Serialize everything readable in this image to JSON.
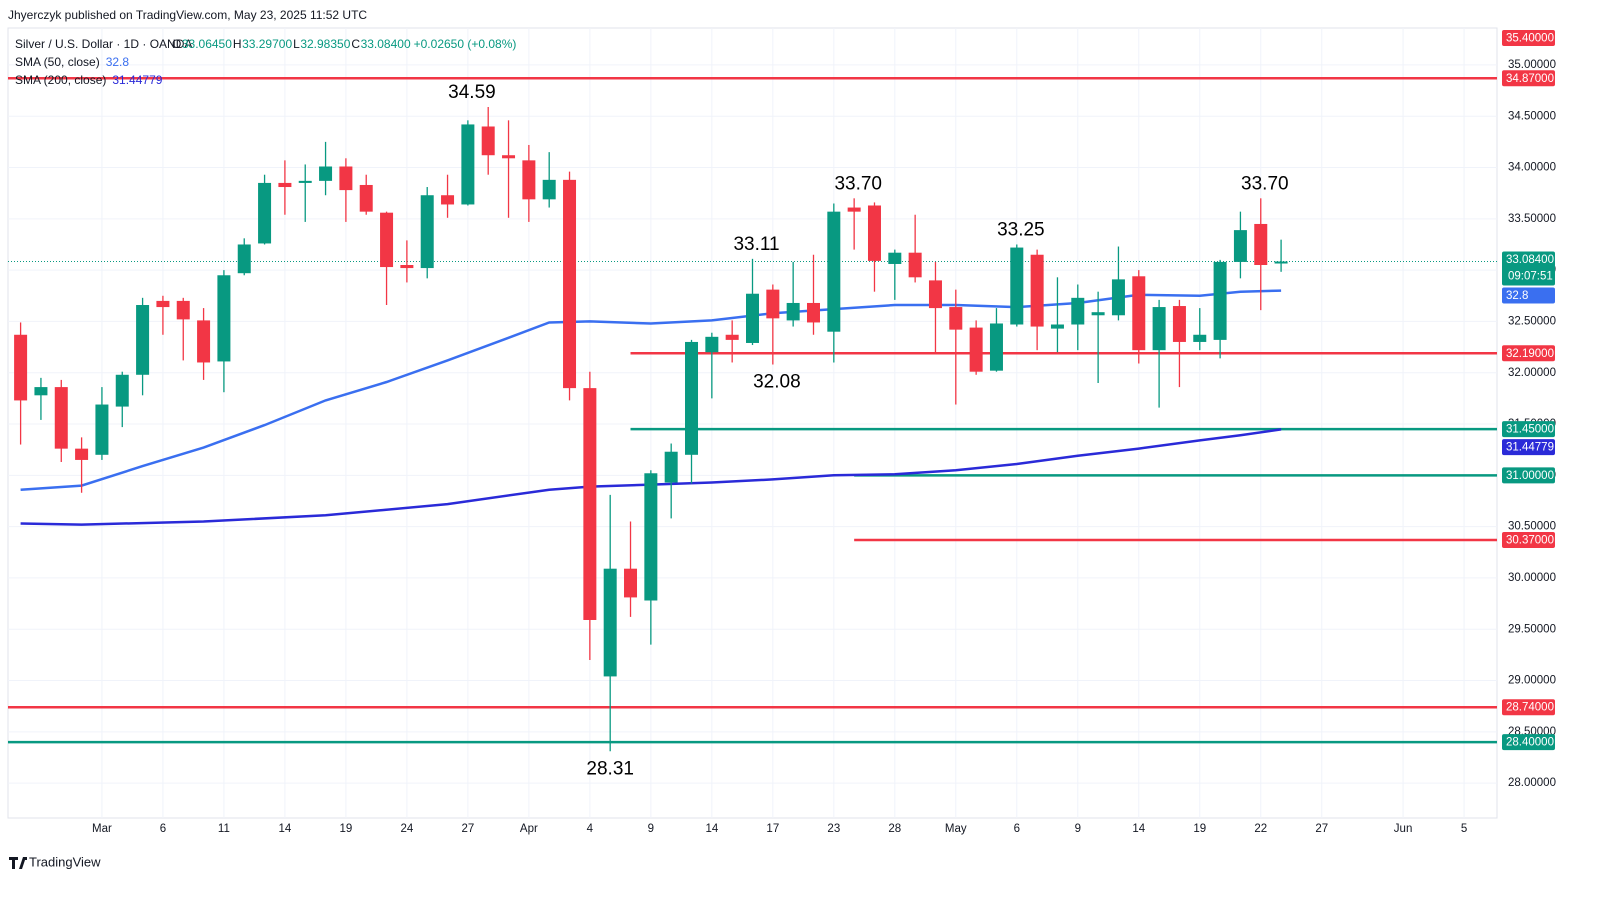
{
  "header": {
    "published": "Jhyerczyk published on TradingView.com, May 23, 2025 11:52 UTC"
  },
  "footer": {
    "brand": "TradingView"
  },
  "chart_data": {
    "type": "candlestick",
    "symbol": "Silver / U.S. Dollar · 1D · OANDA",
    "ohlc": [
      {
        "k": "O",
        "v": "33.06450"
      },
      {
        "k": "H",
        "v": "33.29700"
      },
      {
        "k": "L",
        "v": "32.98350"
      },
      {
        "k": "C",
        "v": "33.08400"
      }
    ],
    "change": "+0.02650 (+0.08%)",
    "up_color": "#089981",
    "down_color": "#f23645",
    "grid": true,
    "xlim": [
      -0.62,
      72.62
    ],
    "ylim": [
      27.66,
      35.36
    ],
    "xticks": [
      {
        "value": 4,
        "label": "Mar"
      },
      {
        "value": 7,
        "label": "6"
      },
      {
        "value": 10,
        "label": "11"
      },
      {
        "value": 13,
        "label": "14"
      },
      {
        "value": 16,
        "label": "19"
      },
      {
        "value": 19,
        "label": "24"
      },
      {
        "value": 22,
        "label": "27"
      },
      {
        "value": 25,
        "label": "Apr"
      },
      {
        "value": 28,
        "label": "4"
      },
      {
        "value": 31,
        "label": "9"
      },
      {
        "value": 34,
        "label": "14"
      },
      {
        "value": 37,
        "label": "17"
      },
      {
        "value": 40,
        "label": "23"
      },
      {
        "value": 43,
        "label": "28"
      },
      {
        "value": 46,
        "label": "May"
      },
      {
        "value": 49,
        "label": "6"
      },
      {
        "value": 52,
        "label": "9"
      },
      {
        "value": 55,
        "label": "14"
      },
      {
        "value": 58,
        "label": "19"
      },
      {
        "value": 61,
        "label": "22"
      },
      {
        "value": 64,
        "label": "27"
      },
      {
        "value": 68,
        "label": "Jun"
      },
      {
        "value": 71,
        "label": "5"
      }
    ],
    "yticks": [
      {
        "value": 28,
        "label": "28.00000"
      },
      {
        "value": 28.5,
        "label": "28.50000"
      },
      {
        "value": 29,
        "label": "29.00000"
      },
      {
        "value": 29.5,
        "label": "29.50000"
      },
      {
        "value": 30,
        "label": "30.00000"
      },
      {
        "value": 30.5,
        "label": "30.50000"
      },
      {
        "value": 31,
        "label": "31.00000"
      },
      {
        "value": 31.5,
        "label": "31.50000"
      },
      {
        "value": 32,
        "label": "32.00000"
      },
      {
        "value": 32.5,
        "label": "32.50000"
      },
      {
        "value": 33,
        "label": "33.00000"
      },
      {
        "value": 33.5,
        "label": "33.50000"
      },
      {
        "value": 34,
        "label": "34.00000"
      },
      {
        "value": 34.5,
        "label": "34.50000"
      },
      {
        "value": 35,
        "label": "35.00000"
      }
    ],
    "candles": {
      "open": [
        32.37,
        31.78,
        31.86,
        31.26,
        31.2,
        31.67,
        31.98,
        32.7,
        32.7,
        32.51,
        32.11,
        32.97,
        33.26,
        33.85,
        33.85,
        33.87,
        34.01,
        33.83,
        33.56,
        33.05,
        33.02,
        33.73,
        33.64,
        34.4,
        34.12,
        34.07,
        33.69,
        33.88,
        31.85,
        29.04,
        30.09,
        29.78,
        30.93,
        31.2,
        32.2,
        32.37,
        32.29,
        32.81,
        32.51,
        32.68,
        32.4,
        33.61,
        33.63,
        33.06,
        33.17,
        32.9,
        32.64,
        32.44,
        32.02,
        32.47,
        33.15,
        32.43,
        32.47,
        32.56,
        32.56,
        32.94,
        32.22,
        32.65,
        32.3,
        32.32,
        33.08,
        33.45,
        33.0645
      ],
      "high": [
        32.49,
        31.95,
        31.93,
        31.37,
        31.86,
        32.01,
        32.73,
        32.75,
        32.73,
        32.63,
        33.0,
        33.31,
        33.93,
        34.07,
        34.03,
        34.25,
        34.09,
        33.93,
        33.57,
        33.29,
        33.81,
        33.93,
        34.46,
        34.59,
        34.46,
        34.22,
        34.15,
        33.96,
        32.01,
        30.81,
        30.55,
        31.05,
        31.31,
        32.32,
        32.39,
        32.51,
        33.11,
        32.86,
        33.08,
        33.15,
        33.65,
        33.7,
        33.66,
        33.2,
        33.54,
        33.08,
        32.81,
        32.51,
        32.63,
        33.25,
        33.2,
        32.93,
        32.86,
        32.79,
        33.23,
        33.0,
        32.71,
        32.71,
        32.63,
        33.1,
        33.57,
        33.7,
        33.297
      ],
      "low": [
        31.3,
        31.54,
        31.13,
        30.83,
        31.15,
        31.47,
        31.78,
        32.37,
        32.12,
        31.93,
        31.81,
        32.95,
        33.25,
        33.54,
        33.47,
        33.73,
        33.47,
        33.54,
        32.66,
        32.88,
        32.92,
        33.51,
        33.63,
        33.93,
        33.51,
        33.47,
        33.61,
        31.73,
        29.2,
        28.31,
        29.62,
        29.35,
        30.58,
        30.92,
        31.75,
        32.1,
        32.27,
        32.08,
        32.45,
        32.37,
        32.1,
        33.2,
        32.79,
        32.71,
        32.88,
        32.2,
        31.69,
        31.98,
        32.01,
        32.45,
        32.22,
        32.2,
        32.22,
        31.9,
        32.51,
        32.09,
        31.66,
        31.86,
        32.22,
        32.14,
        32.92,
        32.61,
        32.9835
      ],
      "close": [
        31.73,
        31.86,
        31.26,
        31.15,
        31.69,
        31.98,
        32.66,
        32.64,
        32.52,
        32.1,
        32.95,
        33.25,
        33.85,
        33.81,
        33.87,
        34.01,
        33.78,
        33.57,
        33.03,
        33.02,
        33.73,
        33.64,
        34.42,
        34.12,
        34.09,
        33.69,
        33.88,
        31.85,
        29.59,
        30.09,
        29.81,
        31.02,
        31.23,
        32.3,
        32.35,
        32.32,
        32.77,
        32.53,
        32.68,
        32.49,
        33.57,
        33.57,
        33.09,
        33.17,
        32.93,
        32.63,
        32.42,
        32.01,
        32.48,
        33.22,
        32.45,
        32.47,
        32.73,
        32.59,
        32.91,
        32.22,
        32.64,
        32.3,
        32.37,
        33.08,
        33.39,
        33.05,
        33.084
      ]
    },
    "series": [
      {
        "name": "SMA (50, close)",
        "color": "#3a6ff0",
        "x": [
          0,
          3,
          6,
          9,
          12,
          15,
          18,
          21,
          24,
          26,
          28,
          31,
          34,
          37,
          40,
          43,
          46,
          49,
          52,
          55,
          58,
          60,
          62
        ],
        "values": [
          30.86,
          30.9,
          31.09,
          31.27,
          31.49,
          31.73,
          31.91,
          32.12,
          32.34,
          32.49,
          32.5,
          32.48,
          32.51,
          32.58,
          32.62,
          32.66,
          32.66,
          32.64,
          32.68,
          32.76,
          32.75,
          32.79,
          32.8
        ],
        "last_label": "32.8"
      },
      {
        "name": "SMA (200, close)",
        "color": "#2a2ad8",
        "x": [
          0,
          3,
          9,
          15,
          21,
          26,
          28,
          31,
          34,
          37,
          40,
          43,
          46,
          49,
          52,
          55,
          58,
          60,
          62
        ],
        "values": [
          30.53,
          30.52,
          30.55,
          30.61,
          30.72,
          30.86,
          30.89,
          30.91,
          30.93,
          30.96,
          31.0,
          31.01,
          31.05,
          31.11,
          31.19,
          31.26,
          31.34,
          31.39,
          31.44779
        ],
        "last_label": "31.44779"
      }
    ],
    "last_price": {
      "value": 33.084,
      "label": "33.08400",
      "countdown": "09:07:51"
    },
    "levels": [
      {
        "value": 35.4,
        "label": "35.40000",
        "color": "#f23645"
      },
      {
        "value": 34.87,
        "label": "34.87000",
        "color": "#f23645"
      },
      {
        "value": 32.19,
        "label": "32.19000",
        "color": "#f23645",
        "x_start": 30
      },
      {
        "value": 31.45,
        "label": "31.45000",
        "color": "#089981",
        "x_start": 30
      },
      {
        "value": 31.0,
        "label": "31.00000",
        "color": "#089981",
        "x_start": 41
      },
      {
        "value": 30.37,
        "label": "30.37000",
        "color": "#f23645",
        "x_start": 41
      },
      {
        "value": 28.74,
        "label": "28.74000",
        "color": "#f23645"
      },
      {
        "value": 28.4,
        "label": "28.40000",
        "color": "#089981"
      }
    ],
    "annotations": [
      {
        "x": 22.2,
        "value": 34.59,
        "label": "34.59",
        "position": "above"
      },
      {
        "x": 36.2,
        "value": 33.11,
        "label": "33.11",
        "position": "above"
      },
      {
        "x": 37.2,
        "value": 32.08,
        "label": "32.08",
        "position": "below"
      },
      {
        "x": 41.2,
        "value": 33.7,
        "label": "33.70",
        "position": "above"
      },
      {
        "x": 49.2,
        "value": 33.25,
        "label": "33.25",
        "position": "above"
      },
      {
        "x": 61.2,
        "value": 33.7,
        "label": "33.70",
        "position": "above"
      },
      {
        "x": 29,
        "value": 28.31,
        "label": "28.31",
        "position": "below"
      }
    ]
  }
}
